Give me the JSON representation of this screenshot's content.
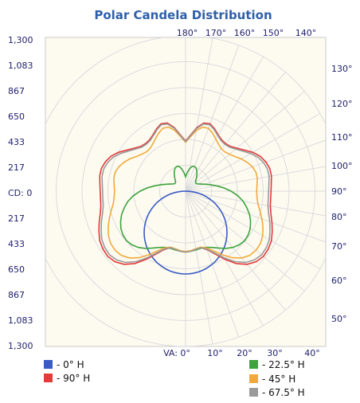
{
  "chart_data": {
    "type": "polar",
    "title": "Polar Candela Distribution",
    "cd_labels_left": [
      "1,300",
      "1,083",
      "867",
      "650",
      "433",
      "217",
      "CD: 0",
      "217",
      "433",
      "650",
      "867",
      "1,083",
      "1,300"
    ],
    "top_angle_labels": [
      "180°",
      "170°",
      "160°",
      "150°",
      "140°"
    ],
    "right_angle_labels": [
      "130°",
      "120°",
      "110°",
      "100°",
      "90°",
      "80°",
      "70°",
      "60°",
      "50°"
    ],
    "bottom_angle_labels": [
      "VA: 0°",
      "10°",
      "20°",
      "30°",
      "40°"
    ],
    "r_max": 1300,
    "grid": true,
    "colors": {
      "title": "#2f5fa8",
      "plot_bg": "#fdfbf0",
      "grid": "#dadadc",
      "axis_text": "#1e1e6e"
    },
    "series": [
      {
        "name": "- 0° H",
        "color": "#3a5bc4",
        "points": [
          [
            0,
            0
          ],
          [
            0.02,
            100
          ],
          [
            0.04,
            195
          ],
          [
            0.06,
            280
          ],
          [
            0.08,
            355
          ],
          [
            0.1,
            420
          ],
          [
            0.12,
            470
          ],
          [
            0.14,
            510
          ],
          [
            0.16,
            540
          ],
          [
            0.18,
            560
          ],
          [
            0.2,
            571
          ],
          [
            0.22,
            574
          ],
          [
            0.24,
            568
          ],
          [
            0.26,
            553
          ],
          [
            0.28,
            530
          ],
          [
            0.3,
            500
          ],
          [
            0.32,
            462
          ],
          [
            0.34,
            418
          ],
          [
            0.36,
            367
          ],
          [
            0.38,
            310
          ],
          [
            0.4,
            250
          ],
          [
            0.42,
            185
          ],
          [
            0.44,
            120
          ],
          [
            0.46,
            55
          ],
          [
            0.48,
            5
          ],
          [
            0.5,
            0
          ]
        ]
      },
      {
        "name": "- 90° H",
        "color": "#e43a3a",
        "points": [
          [
            0,
            510
          ],
          [
            5,
            505
          ],
          [
            10,
            495
          ],
          [
            15,
            490
          ],
          [
            20,
            520
          ],
          [
            25,
            580
          ],
          [
            30,
            660
          ],
          [
            35,
            740
          ],
          [
            40,
            800
          ],
          [
            45,
            835
          ],
          [
            50,
            850
          ],
          [
            55,
            845
          ],
          [
            60,
            830
          ],
          [
            65,
            800
          ],
          [
            70,
            770
          ],
          [
            75,
            740
          ],
          [
            80,
            720
          ],
          [
            85,
            715
          ],
          [
            90,
            715
          ],
          [
            95,
            720
          ],
          [
            100,
            730
          ],
          [
            105,
            730
          ],
          [
            110,
            715
          ],
          [
            115,
            690
          ],
          [
            120,
            650
          ],
          [
            125,
            600
          ],
          [
            130,
            560
          ],
          [
            135,
            530
          ],
          [
            140,
            520
          ],
          [
            145,
            525
          ],
          [
            150,
            545
          ],
          [
            155,
            575
          ],
          [
            160,
            600
          ],
          [
            165,
            590
          ],
          [
            170,
            540
          ],
          [
            175,
            470
          ],
          [
            180,
            420
          ]
        ]
      },
      {
        "name": "- 22.5° H",
        "color": "#3ea33e",
        "points": [
          [
            0,
            510
          ],
          [
            5,
            505
          ],
          [
            10,
            500
          ],
          [
            15,
            495
          ],
          [
            20,
            500
          ],
          [
            25,
            520
          ],
          [
            30,
            550
          ],
          [
            35,
            585
          ],
          [
            40,
            615
          ],
          [
            45,
            635
          ],
          [
            50,
            645
          ],
          [
            55,
            640
          ],
          [
            60,
            625
          ],
          [
            65,
            600
          ],
          [
            70,
            570
          ],
          [
            75,
            530
          ],
          [
            80,
            490
          ],
          [
            85,
            440
          ],
          [
            90,
            380
          ],
          [
            95,
            320
          ],
          [
            100,
            260
          ],
          [
            105,
            210
          ],
          [
            110,
            170
          ],
          [
            115,
            140
          ],
          [
            120,
            120
          ],
          [
            125,
            110
          ],
          [
            130,
            110
          ],
          [
            135,
            120
          ],
          [
            140,
            140
          ],
          [
            145,
            165
          ],
          [
            150,
            190
          ],
          [
            155,
            210
          ],
          [
            160,
            220
          ],
          [
            165,
            215
          ],
          [
            170,
            190
          ],
          [
            175,
            155
          ],
          [
            180,
            120
          ]
        ]
      },
      {
        "name": "- 45° H",
        "color": "#f2a93a",
        "points": [
          [
            0,
            505
          ],
          [
            5,
            500
          ],
          [
            10,
            490
          ],
          [
            15,
            485
          ],
          [
            20,
            505
          ],
          [
            25,
            550
          ],
          [
            30,
            615
          ],
          [
            35,
            680
          ],
          [
            40,
            730
          ],
          [
            45,
            760
          ],
          [
            50,
            770
          ],
          [
            55,
            765
          ],
          [
            60,
            745
          ],
          [
            65,
            715
          ],
          [
            70,
            680
          ],
          [
            75,
            645
          ],
          [
            80,
            615
          ],
          [
            85,
            600
          ],
          [
            90,
            595
          ],
          [
            95,
            600
          ],
          [
            100,
            610
          ],
          [
            105,
            610
          ],
          [
            110,
            595
          ],
          [
            115,
            570
          ],
          [
            120,
            540
          ],
          [
            125,
            505
          ],
          [
            130,
            480
          ],
          [
            135,
            465
          ],
          [
            140,
            465
          ],
          [
            145,
            480
          ],
          [
            150,
            505
          ],
          [
            155,
            535
          ],
          [
            160,
            560
          ],
          [
            165,
            555
          ],
          [
            170,
            515
          ],
          [
            175,
            455
          ],
          [
            180,
            410
          ]
        ]
      },
      {
        "name": "- 67.5° H",
        "color": "#9a9a9a",
        "points": [
          [
            0,
            510
          ],
          [
            5,
            505
          ],
          [
            10,
            495
          ],
          [
            15,
            490
          ],
          [
            20,
            515
          ],
          [
            25,
            570
          ],
          [
            30,
            645
          ],
          [
            35,
            720
          ],
          [
            40,
            780
          ],
          [
            45,
            815
          ],
          [
            50,
            830
          ],
          [
            55,
            825
          ],
          [
            60,
            810
          ],
          [
            65,
            780
          ],
          [
            70,
            750
          ],
          [
            75,
            720
          ],
          [
            80,
            700
          ],
          [
            85,
            695
          ],
          [
            90,
            695
          ],
          [
            95,
            700
          ],
          [
            100,
            710
          ],
          [
            105,
            710
          ],
          [
            110,
            695
          ],
          [
            115,
            670
          ],
          [
            120,
            630
          ],
          [
            125,
            585
          ],
          [
            130,
            548
          ],
          [
            135,
            520
          ],
          [
            140,
            512
          ],
          [
            145,
            517
          ],
          [
            150,
            538
          ],
          [
            155,
            567
          ],
          [
            160,
            592
          ],
          [
            165,
            582
          ],
          [
            170,
            533
          ],
          [
            175,
            465
          ],
          [
            180,
            416
          ]
        ]
      }
    ]
  }
}
